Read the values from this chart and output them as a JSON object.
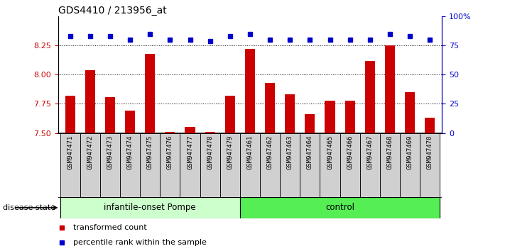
{
  "title": "GDS4410 / 213956_at",
  "samples": [
    "GSM947471",
    "GSM947472",
    "GSM947473",
    "GSM947474",
    "GSM947475",
    "GSM947476",
    "GSM947477",
    "GSM947478",
    "GSM947479",
    "GSM947461",
    "GSM947462",
    "GSM947463",
    "GSM947464",
    "GSM947465",
    "GSM947466",
    "GSM947467",
    "GSM947468",
    "GSM947469",
    "GSM947470"
  ],
  "bar_values": [
    7.82,
    8.04,
    7.81,
    7.69,
    8.18,
    7.51,
    7.55,
    7.51,
    7.82,
    8.22,
    7.93,
    7.83,
    7.66,
    7.78,
    7.78,
    8.12,
    8.25,
    7.85,
    7.63
  ],
  "dot_values": [
    83,
    83,
    83,
    80,
    85,
    80,
    80,
    79,
    83,
    85,
    80,
    80,
    80,
    80,
    80,
    80,
    85,
    83,
    80
  ],
  "group_labels": [
    "infantile-onset Pompe",
    "control"
  ],
  "group_sizes": [
    9,
    10
  ],
  "group_light_colors": [
    "#ccffcc",
    "#55ee55"
  ],
  "ylim_left": [
    7.5,
    8.5
  ],
  "yticks_left": [
    7.5,
    7.75,
    8.0,
    8.25
  ],
  "ylim_right": [
    0,
    100
  ],
  "yticks_right": [
    0,
    25,
    50,
    75,
    100
  ],
  "bar_color": "#cc0000",
  "dot_color": "#0000cc",
  "bar_width": 0.5,
  "sample_box_color": "#d0d0d0",
  "legend_bar_label": "transformed count",
  "legend_dot_label": "percentile rank within the sample",
  "disease_state_label": "disease state"
}
